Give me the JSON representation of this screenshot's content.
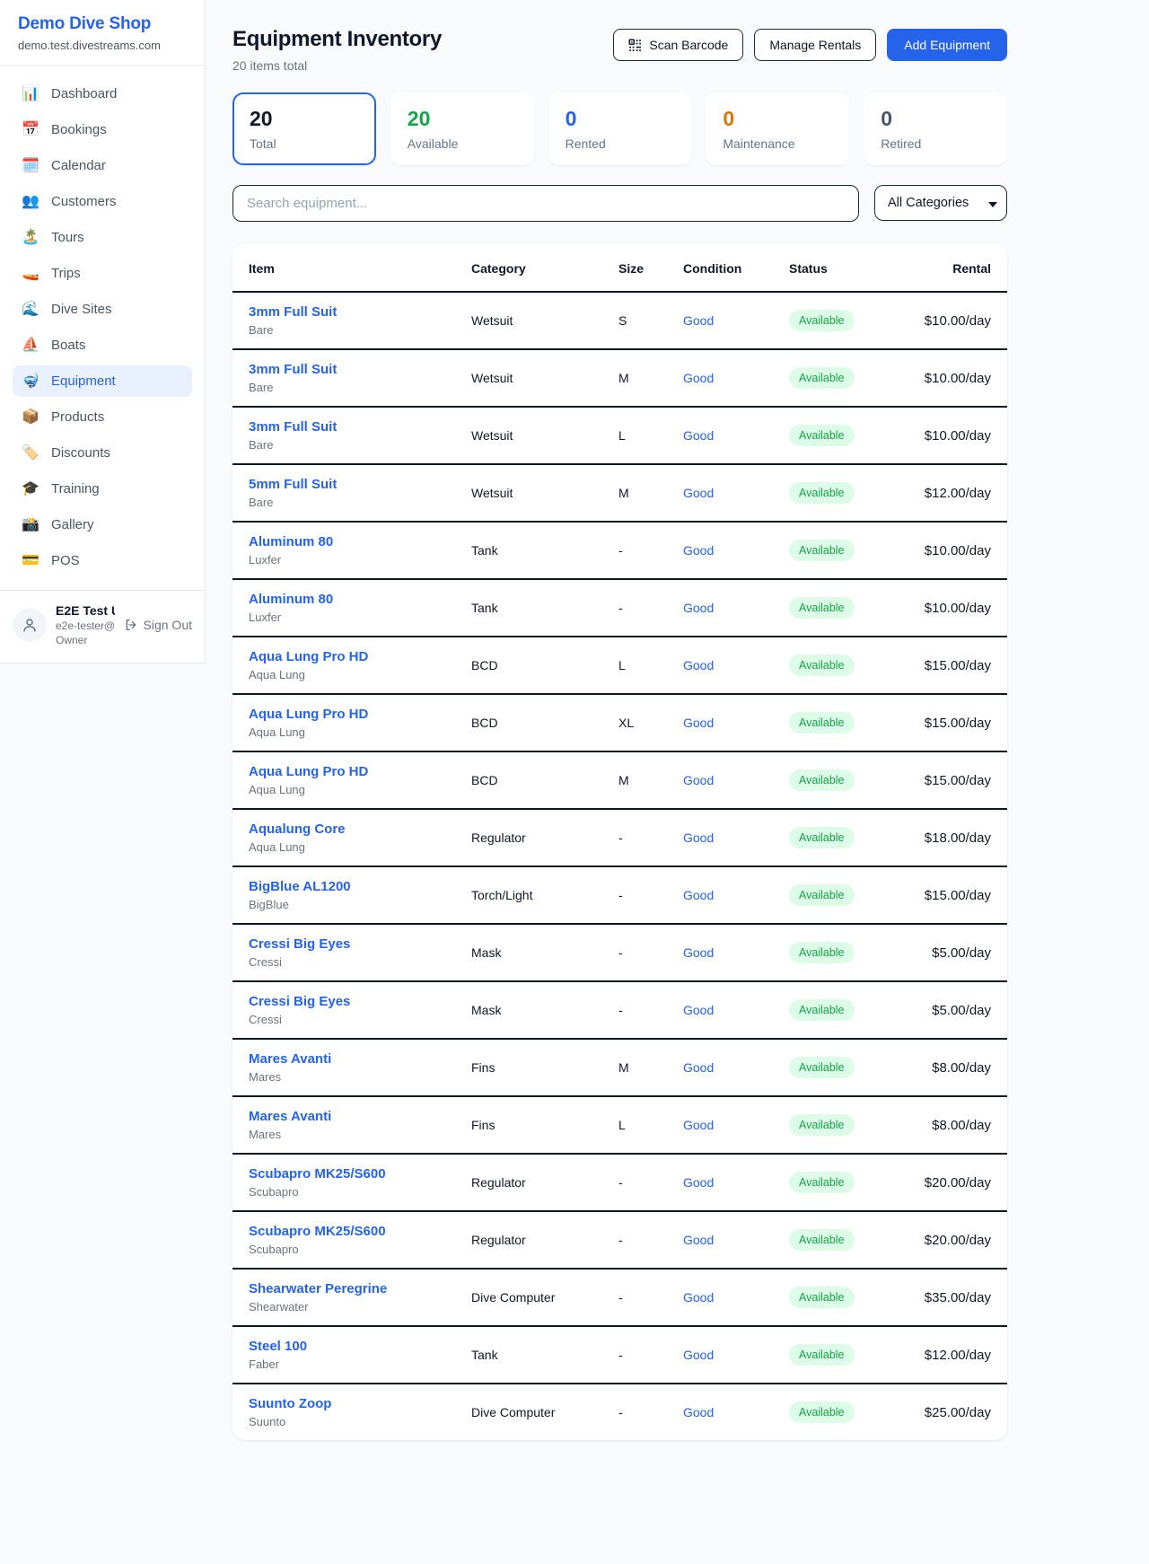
{
  "colors": {
    "accent": "#2563eb",
    "available_green": "#16a34a",
    "maintenance_orange": "#d97706",
    "retired_gray": "#475569",
    "badge_bg": "#dcfce7"
  },
  "sidebar": {
    "brand": {
      "name": "Demo Dive Shop",
      "domain": "demo.test.divestreams.com"
    },
    "items": [
      {
        "id": "dashboard",
        "label": "Dashboard",
        "icon": "📊",
        "active": false
      },
      {
        "id": "bookings",
        "label": "Bookings",
        "icon": "📅",
        "active": false
      },
      {
        "id": "calendar",
        "label": "Calendar",
        "icon": "🗓️",
        "active": false
      },
      {
        "id": "customers",
        "label": "Customers",
        "icon": "👥",
        "active": false
      },
      {
        "id": "tours",
        "label": "Tours",
        "icon": "🏝️",
        "active": false
      },
      {
        "id": "trips",
        "label": "Trips",
        "icon": "🚤",
        "active": false
      },
      {
        "id": "dive-sites",
        "label": "Dive Sites",
        "icon": "🌊",
        "active": false
      },
      {
        "id": "boats",
        "label": "Boats",
        "icon": "⛵",
        "active": false
      },
      {
        "id": "equipment",
        "label": "Equipment",
        "icon": "🤿",
        "active": true
      },
      {
        "id": "products",
        "label": "Products",
        "icon": "📦",
        "active": false
      },
      {
        "id": "discounts",
        "label": "Discounts",
        "icon": "🏷️",
        "active": false
      },
      {
        "id": "training",
        "label": "Training",
        "icon": "🎓",
        "active": false
      },
      {
        "id": "gallery",
        "label": "Gallery",
        "icon": "📸",
        "active": false
      },
      {
        "id": "pos",
        "label": "POS",
        "icon": "💳",
        "active": false
      }
    ],
    "user": {
      "name": "E2E Test U...",
      "email": "e2e-tester@...",
      "role": "Owner",
      "sign_out_label": "Sign Out"
    }
  },
  "header": {
    "title": "Equipment Inventory",
    "subtitle": "20 items total",
    "scan_button": "Scan Barcode",
    "manage_button": "Manage Rentals",
    "add_button": "Add Equipment"
  },
  "stats": [
    {
      "value": "20",
      "label": "Total",
      "color": "#0f172a",
      "active": true
    },
    {
      "value": "20",
      "label": "Available",
      "color": "#16a34a",
      "active": false
    },
    {
      "value": "0",
      "label": "Rented",
      "color": "#2563eb",
      "active": false
    },
    {
      "value": "0",
      "label": "Maintenance",
      "color": "#d97706",
      "active": false
    },
    {
      "value": "0",
      "label": "Retired",
      "color": "#475569",
      "active": false
    }
  ],
  "filters": {
    "search_placeholder": "Search equipment...",
    "category_selected": "All Categories"
  },
  "table": {
    "columns": [
      "Item",
      "Category",
      "Size",
      "Condition",
      "Status",
      "Rental"
    ],
    "rows": [
      {
        "item": "3mm Full Suit",
        "brand": "Bare",
        "category": "Wetsuit",
        "size": "S",
        "condition": "Good",
        "status": "Available",
        "rental": "$10.00/day"
      },
      {
        "item": "3mm Full Suit",
        "brand": "Bare",
        "category": "Wetsuit",
        "size": "M",
        "condition": "Good",
        "status": "Available",
        "rental": "$10.00/day"
      },
      {
        "item": "3mm Full Suit",
        "brand": "Bare",
        "category": "Wetsuit",
        "size": "L",
        "condition": "Good",
        "status": "Available",
        "rental": "$10.00/day"
      },
      {
        "item": "5mm Full Suit",
        "brand": "Bare",
        "category": "Wetsuit",
        "size": "M",
        "condition": "Good",
        "status": "Available",
        "rental": "$12.00/day"
      },
      {
        "item": "Aluminum 80",
        "brand": "Luxfer",
        "category": "Tank",
        "size": "-",
        "condition": "Good",
        "status": "Available",
        "rental": "$10.00/day"
      },
      {
        "item": "Aluminum 80",
        "brand": "Luxfer",
        "category": "Tank",
        "size": "-",
        "condition": "Good",
        "status": "Available",
        "rental": "$10.00/day"
      },
      {
        "item": "Aqua Lung Pro HD",
        "brand": "Aqua Lung",
        "category": "BCD",
        "size": "L",
        "condition": "Good",
        "status": "Available",
        "rental": "$15.00/day"
      },
      {
        "item": "Aqua Lung Pro HD",
        "brand": "Aqua Lung",
        "category": "BCD",
        "size": "XL",
        "condition": "Good",
        "status": "Available",
        "rental": "$15.00/day"
      },
      {
        "item": "Aqua Lung Pro HD",
        "brand": "Aqua Lung",
        "category": "BCD",
        "size": "M",
        "condition": "Good",
        "status": "Available",
        "rental": "$15.00/day"
      },
      {
        "item": "Aqualung Core",
        "brand": "Aqua Lung",
        "category": "Regulator",
        "size": "-",
        "condition": "Good",
        "status": "Available",
        "rental": "$18.00/day"
      },
      {
        "item": "BigBlue AL1200",
        "brand": "BigBlue",
        "category": "Torch/Light",
        "size": "-",
        "condition": "Good",
        "status": "Available",
        "rental": "$15.00/day"
      },
      {
        "item": "Cressi Big Eyes",
        "brand": "Cressi",
        "category": "Mask",
        "size": "-",
        "condition": "Good",
        "status": "Available",
        "rental": "$5.00/day"
      },
      {
        "item": "Cressi Big Eyes",
        "brand": "Cressi",
        "category": "Mask",
        "size": "-",
        "condition": "Good",
        "status": "Available",
        "rental": "$5.00/day"
      },
      {
        "item": "Mares Avanti",
        "brand": "Mares",
        "category": "Fins",
        "size": "M",
        "condition": "Good",
        "status": "Available",
        "rental": "$8.00/day"
      },
      {
        "item": "Mares Avanti",
        "brand": "Mares",
        "category": "Fins",
        "size": "L",
        "condition": "Good",
        "status": "Available",
        "rental": "$8.00/day"
      },
      {
        "item": "Scubapro MK25/S600",
        "brand": "Scubapro",
        "category": "Regulator",
        "size": "-",
        "condition": "Good",
        "status": "Available",
        "rental": "$20.00/day"
      },
      {
        "item": "Scubapro MK25/S600",
        "brand": "Scubapro",
        "category": "Regulator",
        "size": "-",
        "condition": "Good",
        "status": "Available",
        "rental": "$20.00/day"
      },
      {
        "item": "Shearwater Peregrine",
        "brand": "Shearwater",
        "category": "Dive Computer",
        "size": "-",
        "condition": "Good",
        "status": "Available",
        "rental": "$35.00/day"
      },
      {
        "item": "Steel 100",
        "brand": "Faber",
        "category": "Tank",
        "size": "-",
        "condition": "Good",
        "status": "Available",
        "rental": "$12.00/day"
      },
      {
        "item": "Suunto Zoop",
        "brand": "Suunto",
        "category": "Dive Computer",
        "size": "-",
        "condition": "Good",
        "status": "Available",
        "rental": "$25.00/day"
      }
    ]
  }
}
